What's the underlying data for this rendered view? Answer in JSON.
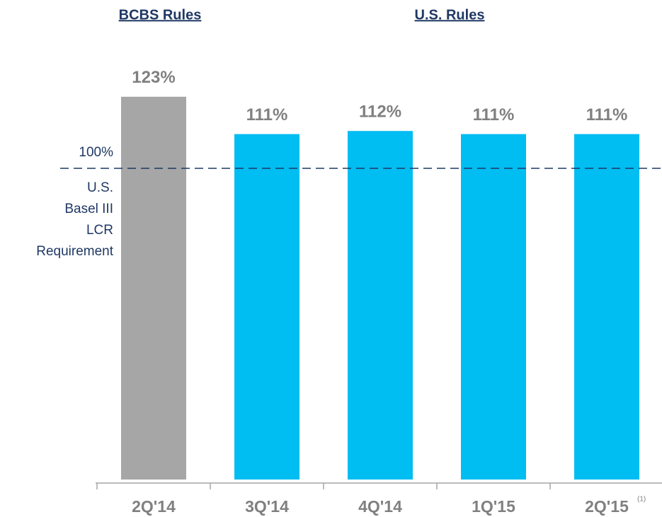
{
  "chart_data": {
    "type": "bar",
    "groups": [
      {
        "label": "BCBS Rules"
      },
      {
        "label": "U.S. Rules"
      }
    ],
    "categories": [
      "2Q'14",
      "3Q'14",
      "4Q'14",
      "1Q'15",
      "2Q'15"
    ],
    "category_notes": [
      null,
      null,
      null,
      null,
      "(1)"
    ],
    "values": [
      123,
      111,
      112,
      111,
      111
    ],
    "value_labels": [
      "123%",
      "111%",
      "112%",
      "111%",
      "111%"
    ],
    "colors": [
      "#a6a6a6",
      "#00bdf2",
      "#00bdf2",
      "#00bdf2",
      "#00bdf2"
    ],
    "ylim": [
      0,
      127
    ],
    "reference_line": {
      "value": 100,
      "label": "100%",
      "text": [
        "U.S.",
        "Basel III",
        "LCR",
        "Requirement"
      ],
      "color": "#1f3864"
    }
  }
}
